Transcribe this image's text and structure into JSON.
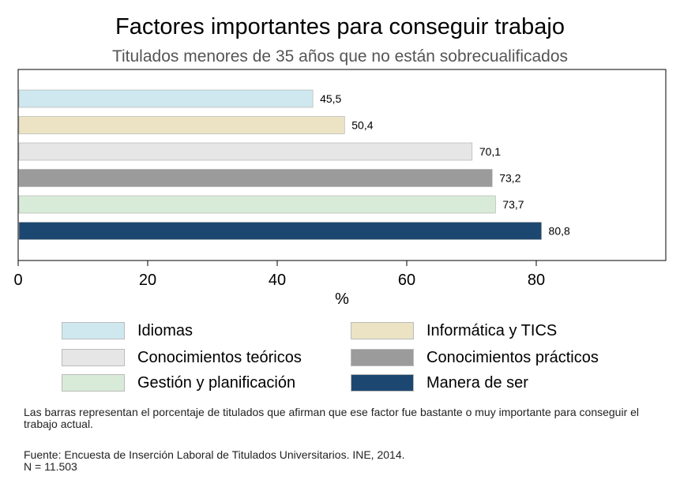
{
  "title": "Factores importantes para conseguir trabajo",
  "subtitle": "Titulados menores de 35 años que no están sobrecualificados",
  "chart_data": {
    "type": "bar",
    "orientation": "horizontal",
    "title": "Factores importantes para conseguir trabajo",
    "subtitle": "Titulados menores de 35 años que no están sobrecualificados",
    "xlabel": "%",
    "ylabel": "",
    "xlim": [
      0,
      100
    ],
    "xticks": [
      0,
      20,
      40,
      60,
      80
    ],
    "categories": [
      "Idiomas",
      "Informática y TICS",
      "Conocimientos teóricos",
      "Conocimientos prácticos",
      "Gestión y planificación",
      "Manera de ser"
    ],
    "values": [
      45.5,
      50.4,
      70.1,
      73.2,
      73.7,
      80.8
    ],
    "value_labels": [
      "45,5",
      "50,4",
      "70,1",
      "73,2",
      "73,7",
      "80,8"
    ],
    "colors": [
      "#cfe8f0",
      "#ebe3c4",
      "#e6e6e6",
      "#9b9b9b",
      "#d8ebd8",
      "#1c4770"
    ],
    "grid": false,
    "legend_position": "bottom"
  },
  "legend": [
    {
      "label": "Idiomas",
      "color": "#cfe8f0"
    },
    {
      "label": "Informática y TICS",
      "color": "#ebe3c4"
    },
    {
      "label": "Conocimientos teóricos",
      "color": "#e6e6e6"
    },
    {
      "label": "Conocimientos prácticos",
      "color": "#9b9b9b"
    },
    {
      "label": "Gestión y planificación",
      "color": "#d8ebd8"
    },
    {
      "label": "Manera de ser",
      "color": "#1c4770"
    }
  ],
  "note": "Las barras representan el porcentaje de titulados que afirman que ese factor fue bastante o muy importante para conseguir el trabajo actual.",
  "source_line": "Fuente: Encuesta de Inserción Laboral de Titulados Universitarios. INE, 2014.",
  "sample_line": "N =  11.503"
}
